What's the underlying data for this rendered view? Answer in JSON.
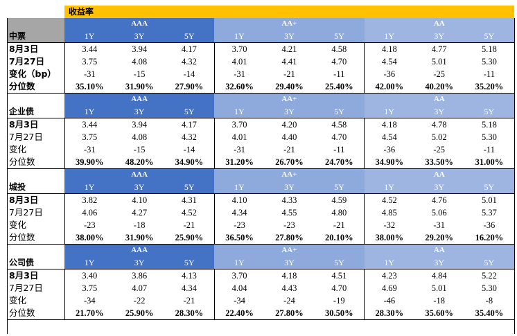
{
  "title": "收益率",
  "group_labels": [
    "AAA",
    "AA+",
    "AA"
  ],
  "tenors": [
    "1Y",
    "3Y",
    "5Y"
  ],
  "sections": [
    {
      "name": "中票",
      "rows": [
        {
          "label": "8月3日",
          "values": [
            "3.44",
            "3.94",
            "4.17",
            "3.70",
            "4.21",
            "4.58",
            "4.18",
            "4.77",
            "5.18"
          ]
        },
        {
          "label": "7月27日",
          "values": [
            "3.75",
            "4.08",
            "4.32",
            "4.01",
            "4.41",
            "4.70",
            "4.54",
            "5.01",
            "5.30"
          ]
        },
        {
          "label": "变化（bp）",
          "values": [
            "-31",
            "-15",
            "-14",
            "-31",
            "-21",
            "-11",
            "-36",
            "-25",
            "-11"
          ]
        },
        {
          "label": "分位数",
          "values": [
            "35.10%",
            "31.90%",
            "27.90%",
            "32.60%",
            "29.40%",
            "25.40%",
            "42.00%",
            "40.20%",
            "35.20%"
          ]
        }
      ]
    },
    {
      "name": "企业债",
      "rows": [
        {
          "label": "8月3日",
          "values": [
            "3.44",
            "3.94",
            "4.17",
            "3.70",
            "4.20",
            "4.58",
            "4.18",
            "4.78",
            "5.18"
          ]
        },
        {
          "label": "7月27日",
          "values": [
            "3.75",
            "4.08",
            "4.32",
            "4.01",
            "4.40",
            "4.70",
            "4.54",
            "5.02",
            "5.30"
          ]
        },
        {
          "label": "变化",
          "values": [
            "-31",
            "-15",
            "-14",
            "-31",
            "-21",
            "-11",
            "-36",
            "-25",
            "-11"
          ]
        },
        {
          "label": "分位数",
          "values": [
            "39.90%",
            "48.20%",
            "34.90%",
            "31.20%",
            "26.70%",
            "24.70%",
            "34.90%",
            "33.50%",
            "31.00%"
          ]
        }
      ]
    },
    {
      "name": "城投",
      "rows": [
        {
          "label": "8月3日",
          "values": [
            "3.82",
            "4.10",
            "4.31",
            "4.10",
            "4.33",
            "4.59",
            "4.52",
            "4.76",
            "5.01"
          ]
        },
        {
          "label": "7月27日",
          "values": [
            "4.06",
            "4.27",
            "4.52",
            "4.34",
            "4.55",
            "4.80",
            "4.85",
            "5.06",
            "5.37"
          ]
        },
        {
          "label": "变化",
          "values": [
            "-23",
            "-18",
            "-21",
            "-23",
            "-23",
            "-21",
            "-32",
            "-31",
            "-36"
          ]
        },
        {
          "label": "分位数",
          "values": [
            "38.00%",
            "31.90%",
            "25.90%",
            "36.50%",
            "27.80%",
            "20.10%",
            "38.00%",
            "29.20%",
            "16.20%"
          ]
        }
      ]
    },
    {
      "name": "公司债",
      "rows": [
        {
          "label": "8月3日",
          "values": [
            "3.40",
            "3.86",
            "4.13",
            "3.70",
            "4.18",
            "4.51",
            "4.23",
            "4.84",
            "5.22"
          ]
        },
        {
          "label": "7月27日",
          "values": [
            "3.75",
            "4.07",
            "4.34",
            "4.04",
            "4.43",
            "4.70",
            "4.69",
            "5.01",
            "5.30"
          ]
        },
        {
          "label": "变化",
          "values": [
            "-34",
            "-22",
            "-21",
            "-34",
            "-24",
            "-19",
            "-46",
            "-18",
            "-8"
          ]
        },
        {
          "label": "分位数",
          "values": [
            "21.70%",
            "25.90%",
            "28.30%",
            "22.40%",
            "27.80%",
            "30.50%",
            "28.30%",
            "35.60%",
            "35.40%"
          ]
        }
      ]
    }
  ],
  "colors": {
    "title_bg": "#FFC000",
    "aaa_bg": "#4472C4",
    "aa_plus_bg": "#8EA9DB",
    "aa_bg": "#9DB5E0",
    "corner_bg": "#A6A6A6"
  }
}
